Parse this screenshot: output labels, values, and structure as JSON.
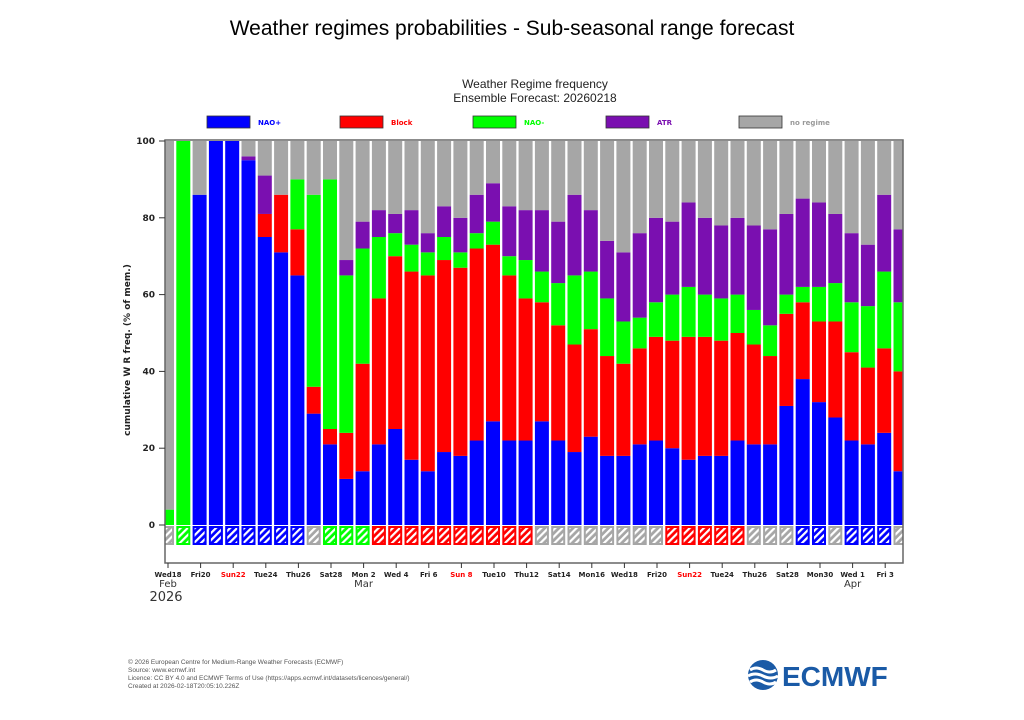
{
  "page": {
    "title": "Weather regimes probabilities - Sub-seasonal range forecast"
  },
  "chart_data": {
    "type": "bar",
    "stacked": true,
    "title": "Weather Regime frequency",
    "subtitle": "Ensemble Forecast: 20260218",
    "ylabel": "cumulative W R freq. (% of mem.)",
    "xlabel": "",
    "ylim": [
      0,
      100
    ],
    "yticks": [
      0,
      20,
      40,
      60,
      80,
      100
    ],
    "grid": false,
    "legend_placement": "top",
    "dates": [
      "2026-02-18",
      "2026-02-19",
      "2026-02-20",
      "2026-02-21",
      "2026-02-22",
      "2026-02-23",
      "2026-02-24",
      "2026-02-25",
      "2026-02-26",
      "2026-02-27",
      "2026-02-28",
      "2026-03-01",
      "2026-03-02",
      "2026-03-03",
      "2026-03-04",
      "2026-03-05",
      "2026-03-06",
      "2026-03-07",
      "2026-03-08",
      "2026-03-09",
      "2026-03-10",
      "2026-03-11",
      "2026-03-12",
      "2026-03-13",
      "2026-03-14",
      "2026-03-15",
      "2026-03-16",
      "2026-03-17",
      "2026-03-18",
      "2026-03-19",
      "2026-03-20",
      "2026-03-21",
      "2026-03-22",
      "2026-03-23",
      "2026-03-24",
      "2026-03-25",
      "2026-03-26",
      "2026-03-27",
      "2026-03-28",
      "2026-03-29",
      "2026-03-30",
      "2026-03-31",
      "2026-04-01",
      "2026-04-02",
      "2026-04-03",
      "2026-04-04"
    ],
    "series": [
      {
        "name": "NAO+",
        "color": "#0000ff",
        "values": [
          0,
          0,
          86,
          100,
          100,
          95,
          75,
          71,
          65,
          29,
          21,
          12,
          14,
          21,
          25,
          17,
          14,
          19,
          18,
          22,
          27,
          22,
          22,
          27,
          22,
          19,
          23,
          18,
          18,
          21,
          22,
          20,
          17,
          18,
          18,
          22,
          21,
          21,
          31,
          38,
          32,
          28,
          22,
          21,
          24,
          14
        ]
      },
      {
        "name": "Block",
        "color": "#ff0000",
        "values": [
          0,
          0,
          0,
          0,
          0,
          0,
          6,
          15,
          12,
          7,
          4,
          12,
          28,
          38,
          45,
          49,
          51,
          50,
          49,
          50,
          46,
          43,
          37,
          31,
          30,
          28,
          28,
          26,
          24,
          25,
          27,
          28,
          32,
          31,
          30,
          28,
          26,
          23,
          24,
          20,
          21,
          25,
          23,
          20,
          22,
          26
        ]
      },
      {
        "name": "NAO-",
        "color": "#00ff00",
        "values": [
          4,
          100,
          0,
          0,
          0,
          0,
          0,
          0,
          13,
          50,
          65,
          41,
          30,
          16,
          6,
          7,
          6,
          6,
          4,
          4,
          6,
          5,
          10,
          8,
          11,
          18,
          15,
          15,
          11,
          8,
          9,
          12,
          13,
          11,
          11,
          10,
          9,
          8,
          5,
          4,
          9,
          10,
          13,
          16,
          20,
          18
        ]
      },
      {
        "name": "ATR",
        "color": "#7a0fb0",
        "values": [
          0,
          0,
          0,
          0,
          0,
          1,
          10,
          0,
          0,
          0,
          0,
          4,
          7,
          7,
          5,
          9,
          5,
          8,
          9,
          10,
          10,
          13,
          13,
          16,
          16,
          21,
          16,
          15,
          18,
          22,
          22,
          19,
          22,
          20,
          19,
          20,
          22,
          25,
          21,
          23,
          22,
          18,
          18,
          16,
          20,
          19
        ]
      },
      {
        "name": "no regime",
        "color": "#a6a6a6",
        "values": [
          96,
          0,
          14,
          0,
          0,
          4,
          9,
          14,
          10,
          14,
          10,
          31,
          21,
          18,
          19,
          18,
          24,
          17,
          20,
          14,
          11,
          17,
          18,
          18,
          21,
          14,
          18,
          26,
          29,
          24,
          20,
          21,
          16,
          20,
          22,
          20,
          22,
          23,
          19,
          15,
          16,
          19,
          24,
          27,
          14,
          23
        ]
      }
    ],
    "dominant_regime": [
      "no regime",
      "NAO-",
      "NAO+",
      "NAO+",
      "NAO+",
      "NAO+",
      "NAO+",
      "NAO+",
      "NAO+",
      "no regime",
      "NAO-",
      "NAO-",
      "NAO-",
      "Block",
      "Block",
      "Block",
      "Block",
      "Block",
      "Block",
      "Block",
      "Block",
      "Block",
      "Block",
      "no regime",
      "no regime",
      "no regime",
      "no regime",
      "no regime",
      "no regime",
      "no regime",
      "no regime",
      "Block",
      "Block",
      "Block",
      "Block",
      "Block",
      "no regime",
      "no regime",
      "no regime",
      "NAO+",
      "NAO+",
      "no regime",
      "NAO+",
      "NAO+",
      "NAO+",
      "no regime"
    ],
    "xtick_labels": [
      {
        "label": "Wed18",
        "weekend": false
      },
      {
        "label": "Fri20",
        "weekend": false
      },
      {
        "label": "Sun22",
        "weekend": true
      },
      {
        "label": "Tue24",
        "weekend": false
      },
      {
        "label": "Thu26",
        "weekend": false
      },
      {
        "label": "Sat28",
        "weekend": false
      },
      {
        "label": "Mon 2",
        "weekend": false
      },
      {
        "label": "Wed 4",
        "weekend": false
      },
      {
        "label": "Fri 6",
        "weekend": false
      },
      {
        "label": "Sun 8",
        "weekend": true
      },
      {
        "label": "Tue10",
        "weekend": false
      },
      {
        "label": "Thu12",
        "weekend": false
      },
      {
        "label": "Sat14",
        "weekend": false
      },
      {
        "label": "Mon16",
        "weekend": false
      },
      {
        "label": "Wed18",
        "weekend": false
      },
      {
        "label": "Fri20",
        "weekend": false
      },
      {
        "label": "Sun22",
        "weekend": true
      },
      {
        "label": "Tue24",
        "weekend": false
      },
      {
        "label": "Thu26",
        "weekend": false
      },
      {
        "label": "Sat28",
        "weekend": false
      },
      {
        "label": "Mon30",
        "weekend": false
      },
      {
        "label": "Wed 1",
        "weekend": false
      },
      {
        "label": "Fri 3",
        "weekend": false
      }
    ],
    "month_labels": [
      {
        "label": "Feb",
        "date": "2026-02-18"
      },
      {
        "label": "Mar",
        "date": "2026-03-02"
      },
      {
        "label": "Apr",
        "date": "2026-04-01"
      }
    ],
    "year_label": "2026",
    "sunday_label_color": "#ff0000"
  },
  "footer": {
    "lines": [
      "© 2026 European Centre for Medium-Range Weather Forecasts (ECMWF)",
      "Source: www.ecmwf.int",
      "Licence: CC BY 4.0 and ECMWF Terms of Use (https://apps.ecmwf.int/datasets/licences/general/)",
      "Created at 2026-02-18T20:05:10.226Z"
    ],
    "logo_text": "ECMWF",
    "logo_color": "#1a5aa6"
  }
}
